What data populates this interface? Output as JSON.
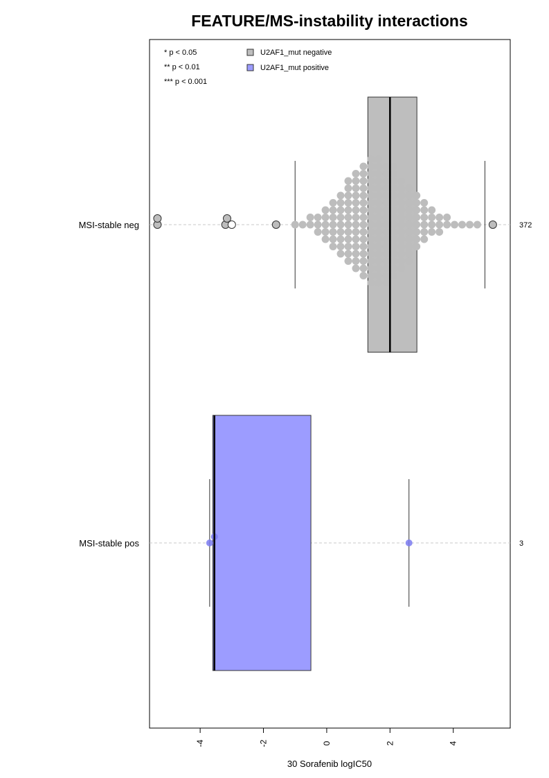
{
  "chart_data": {
    "type": "box",
    "title": "FEATURE/MS-instability interactions",
    "xlabel": "30 Sorafenib logIC50",
    "ylabel": "",
    "xlim": [
      -5.6,
      5.8
    ],
    "xticks": [
      -4,
      -2,
      0,
      2,
      4
    ],
    "xtick_labels": [
      "-4",
      "-2",
      "0",
      "2",
      "4"
    ],
    "grid": "dashed horizontal guide per group",
    "legend_position": "top-left",
    "significance_legend": [
      "* p < 0.05",
      "** p < 0.01",
      "*** p < 0.001"
    ],
    "legend": [
      {
        "label": "U2AF1_mut negative",
        "color": "#bebebe"
      },
      {
        "label": "U2AF1_mut positive",
        "color": "#9c9cff"
      }
    ],
    "groups": [
      {
        "label": "MSI-stable neg",
        "count_label": "372",
        "color": "#bebebe",
        "point_color": "#bdbdbd",
        "box": {
          "q1": 1.3,
          "median": 2.0,
          "q3": 2.85,
          "whisker_low": -1.0,
          "whisker_high": 5.0
        },
        "outliers": [
          -5.35,
          -5.35,
          -3.2,
          -3.15,
          -3.0,
          -1.6,
          5.25
        ],
        "points": [
          -1.0,
          -0.75,
          -0.5,
          -0.2,
          -0.15,
          0.1,
          0.2,
          0.2,
          0.35,
          0.35,
          0.4,
          0.45,
          0.5,
          0.55,
          0.6,
          0.7,
          0.75,
          0.8,
          0.85,
          0.9,
          0.95,
          1.0,
          1.0,
          1.05,
          1.1,
          1.15,
          1.2,
          1.2,
          1.25,
          1.3,
          1.3,
          1.35,
          1.4,
          1.4,
          1.45,
          1.5,
          1.5,
          1.5,
          1.55,
          1.6,
          1.6,
          1.65,
          1.7,
          1.7,
          1.75,
          1.8,
          1.8,
          1.85,
          1.9,
          1.9,
          1.95,
          2.0,
          2.0,
          2.0,
          2.05,
          2.1,
          2.1,
          2.15,
          2.2,
          2.2,
          2.25,
          2.3,
          2.3,
          2.35,
          2.4,
          2.45,
          2.5,
          2.5,
          2.55,
          2.6,
          2.6,
          2.7,
          2.75,
          2.8,
          2.9,
          3.0,
          3.1,
          3.2,
          3.3,
          3.4,
          3.5,
          3.6,
          3.7,
          3.8,
          3.9,
          4.0,
          4.1,
          4.2,
          4.3,
          4.5,
          4.6,
          4.8,
          5.0
        ]
      },
      {
        "label": "MSI-stable pos",
        "count_label": "3",
        "color": "#9c9cff",
        "point_color": "#7b7bf0",
        "box": {
          "q1": -3.6,
          "median": -3.55,
          "q3": -0.5,
          "whisker_low": -3.7,
          "whisker_high": 2.6
        },
        "outliers": [],
        "points": [
          -3.7,
          -3.55,
          2.6
        ]
      }
    ]
  }
}
